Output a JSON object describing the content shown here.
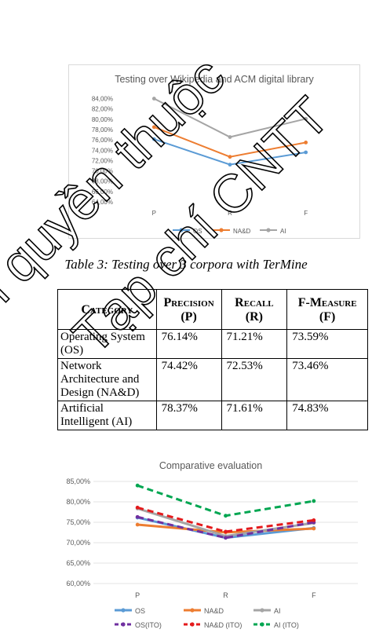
{
  "watermark": {
    "line1": "Bản quyền thuộc",
    "line2": "Tạp chí CNTT"
  },
  "chart_data": [
    {
      "type": "line",
      "title": "Testing over Wikipedia and ACM digital library",
      "categories": [
        "P",
        "R",
        "F"
      ],
      "ylim": [
        0.64,
        0.85
      ],
      "ystep": 0.02,
      "ytick_format": "percent2",
      "grid": false,
      "legend_position": "bottom",
      "series": [
        {
          "name": "OS",
          "values": [
            0.7614,
            0.7121,
            0.7359
          ],
          "color": "#5b9bd5",
          "dash": "",
          "width": 2
        },
        {
          "name": "NA&D",
          "values": [
            0.7848,
            0.7272,
            0.755
          ],
          "color": "#ed7d31",
          "dash": "",
          "width": 2
        },
        {
          "name": "AI",
          "values": [
            0.84,
            0.7655,
            0.8009
          ],
          "color": "#a5a5a5",
          "dash": "",
          "width": 2
        }
      ]
    },
    {
      "type": "line",
      "title": "Comparative evaluation",
      "categories": [
        "P",
        "R",
        "F"
      ],
      "ylim": [
        0.6,
        0.85
      ],
      "ystep": 0.05,
      "ytick_format": "percent2",
      "grid": true,
      "legend_position": "bottom",
      "series": [
        {
          "name": "OS",
          "values": [
            0.7614,
            0.7121,
            0.7359
          ],
          "color": "#5b9bd5",
          "dash": "",
          "width": 3
        },
        {
          "name": "NA&D",
          "values": [
            0.7442,
            0.7253,
            0.7346
          ],
          "color": "#ed7d31",
          "dash": "",
          "width": 3
        },
        {
          "name": "AI",
          "values": [
            0.7837,
            0.7161,
            0.7483
          ],
          "color": "#a5a5a5",
          "dash": "",
          "width": 3
        },
        {
          "name": "OS(ITO)",
          "values": [
            0.763,
            0.712,
            0.75
          ],
          "color": "#7030a0",
          "dash": "8,5",
          "width": 3
        },
        {
          "name": "NA&D (ITO)",
          "values": [
            0.786,
            0.727,
            0.755
          ],
          "color": "#e41a1c",
          "dash": "8,5",
          "width": 3
        },
        {
          "name": "AI (ITO)",
          "values": [
            0.84,
            0.766,
            0.802
          ],
          "color": "#00a651",
          "dash": "8,5",
          "width": 3
        }
      ]
    }
  ],
  "caption": "Table 3: Testing over 3 corpora with TerMine",
  "table": {
    "headers": [
      {
        "line1": "Category",
        "line2": ""
      },
      {
        "line1": "Precision",
        "line2": "(P)"
      },
      {
        "line1": "Recall",
        "line2": "(R)"
      },
      {
        "line1": "F-Measure",
        "line2": "(F)"
      }
    ],
    "rows": [
      {
        "category": "Operating System (OS)",
        "p": "76.14%",
        "r": "71.21%",
        "f": "73.59%"
      },
      {
        "category": "Network Architecture and Design (NA&D)",
        "p": "74.42%",
        "r": "72.53%",
        "f": "73.46%"
      },
      {
        "category": "Artificial Intelligent (AI)",
        "p": "78.37%",
        "r": "71.61%",
        "f": "74.83%"
      }
    ]
  }
}
